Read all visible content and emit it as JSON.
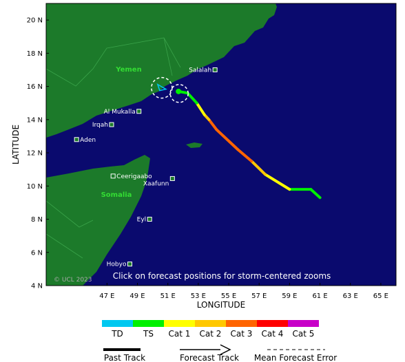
{
  "map": {
    "ocean_color": "#0a0a6e",
    "land_color": "#1c7a2a",
    "x_axis_label": "LONGITUDE",
    "y_axis_label": "LATITUDE",
    "lon_range": [
      43,
      66
    ],
    "lat_range": [
      4,
      21
    ],
    "lon_ticks": [
      {
        "value": 47,
        "label": "47 E"
      },
      {
        "value": 49,
        "label": "49 E"
      },
      {
        "value": 51,
        "label": "51 E"
      },
      {
        "value": 53,
        "label": "53 E"
      },
      {
        "value": 55,
        "label": "55 E"
      },
      {
        "value": 57,
        "label": "57 E"
      },
      {
        "value": 59,
        "label": "59 E"
      },
      {
        "value": 61,
        "label": "61 E"
      },
      {
        "value": 63,
        "label": "63 E"
      },
      {
        "value": 65,
        "label": "65 E"
      }
    ],
    "lat_ticks": [
      {
        "value": 4,
        "label": "4 N"
      },
      {
        "value": 6,
        "label": "6 N"
      },
      {
        "value": 8,
        "label": "8 N"
      },
      {
        "value": 10,
        "label": "10 N"
      },
      {
        "value": 12,
        "label": "12 N"
      },
      {
        "value": 14,
        "label": "14 N"
      },
      {
        "value": 16,
        "label": "16 N"
      },
      {
        "value": 18,
        "label": "18 N"
      },
      {
        "value": 20,
        "label": "20 N"
      }
    ],
    "countries": [
      "Yemen",
      "Somalia"
    ],
    "cities": [
      {
        "name": "Salalah",
        "lon": 54.1,
        "lat": 17.0
      },
      {
        "name": "Al Mukalla",
        "lon": 49.1,
        "lat": 14.5
      },
      {
        "name": "Irqah",
        "lon": 47.3,
        "lat": 13.7
      },
      {
        "name": "Aden",
        "lon": 45.0,
        "lat": 12.8
      },
      {
        "name": "Ceerigaabo",
        "lon": 47.4,
        "lat": 10.6
      },
      {
        "name": "Xaafunn",
        "lon": 51.3,
        "lat": 10.45
      },
      {
        "name": "Eyl",
        "lon": 49.8,
        "lat": 8.0
      },
      {
        "name": "Hobyo",
        "lon": 48.5,
        "lat": 5.3
      }
    ],
    "overlay_text": "Click on forecast positions for storm-centered zooms",
    "copyright": "© UCL 2023",
    "track": [
      {
        "lon": 61.0,
        "lat": 9.3,
        "category": "TS"
      },
      {
        "lon": 60.4,
        "lat": 9.8,
        "category": "TS"
      },
      {
        "lon": 59.0,
        "lat": 9.8,
        "category": "TS"
      },
      {
        "lon": 57.4,
        "lat": 10.7,
        "category": "Cat 1"
      },
      {
        "lon": 56.5,
        "lat": 11.5,
        "category": "Cat 2"
      },
      {
        "lon": 55.6,
        "lat": 12.2,
        "category": "Cat 3"
      },
      {
        "lon": 54.2,
        "lat": 13.4,
        "category": "Cat 3"
      },
      {
        "lon": 53.7,
        "lat": 14.0,
        "category": "Cat 3"
      },
      {
        "lon": 53.4,
        "lat": 14.3,
        "category": "Cat 2"
      },
      {
        "lon": 52.9,
        "lat": 15.0,
        "category": "Cat 1"
      },
      {
        "lon": 52.3,
        "lat": 15.6,
        "category": "TS"
      },
      {
        "lon": 51.7,
        "lat": 15.7,
        "category": "TS"
      }
    ],
    "storm_center": {
      "lon": 51.7,
      "lat": 15.7
    },
    "inland_marker": {
      "lon": 50.6,
      "lat": 16.0
    }
  },
  "legend": {
    "categories": [
      {
        "label": "TD",
        "color": "#00c8f0"
      },
      {
        "label": "TS",
        "color": "#00f000"
      },
      {
        "label": "Cat 1",
        "color": "#ffff00"
      },
      {
        "label": "Cat 2",
        "color": "#ffc800"
      },
      {
        "label": "Cat 3",
        "color": "#ff6400"
      },
      {
        "label": "Cat 4",
        "color": "#ff0000"
      },
      {
        "label": "Cat 5",
        "color": "#c800c8"
      }
    ],
    "past_track_label": "Past Track",
    "forecast_track_label": "Forecast Track",
    "error_label": "Mean Forecast Error"
  }
}
